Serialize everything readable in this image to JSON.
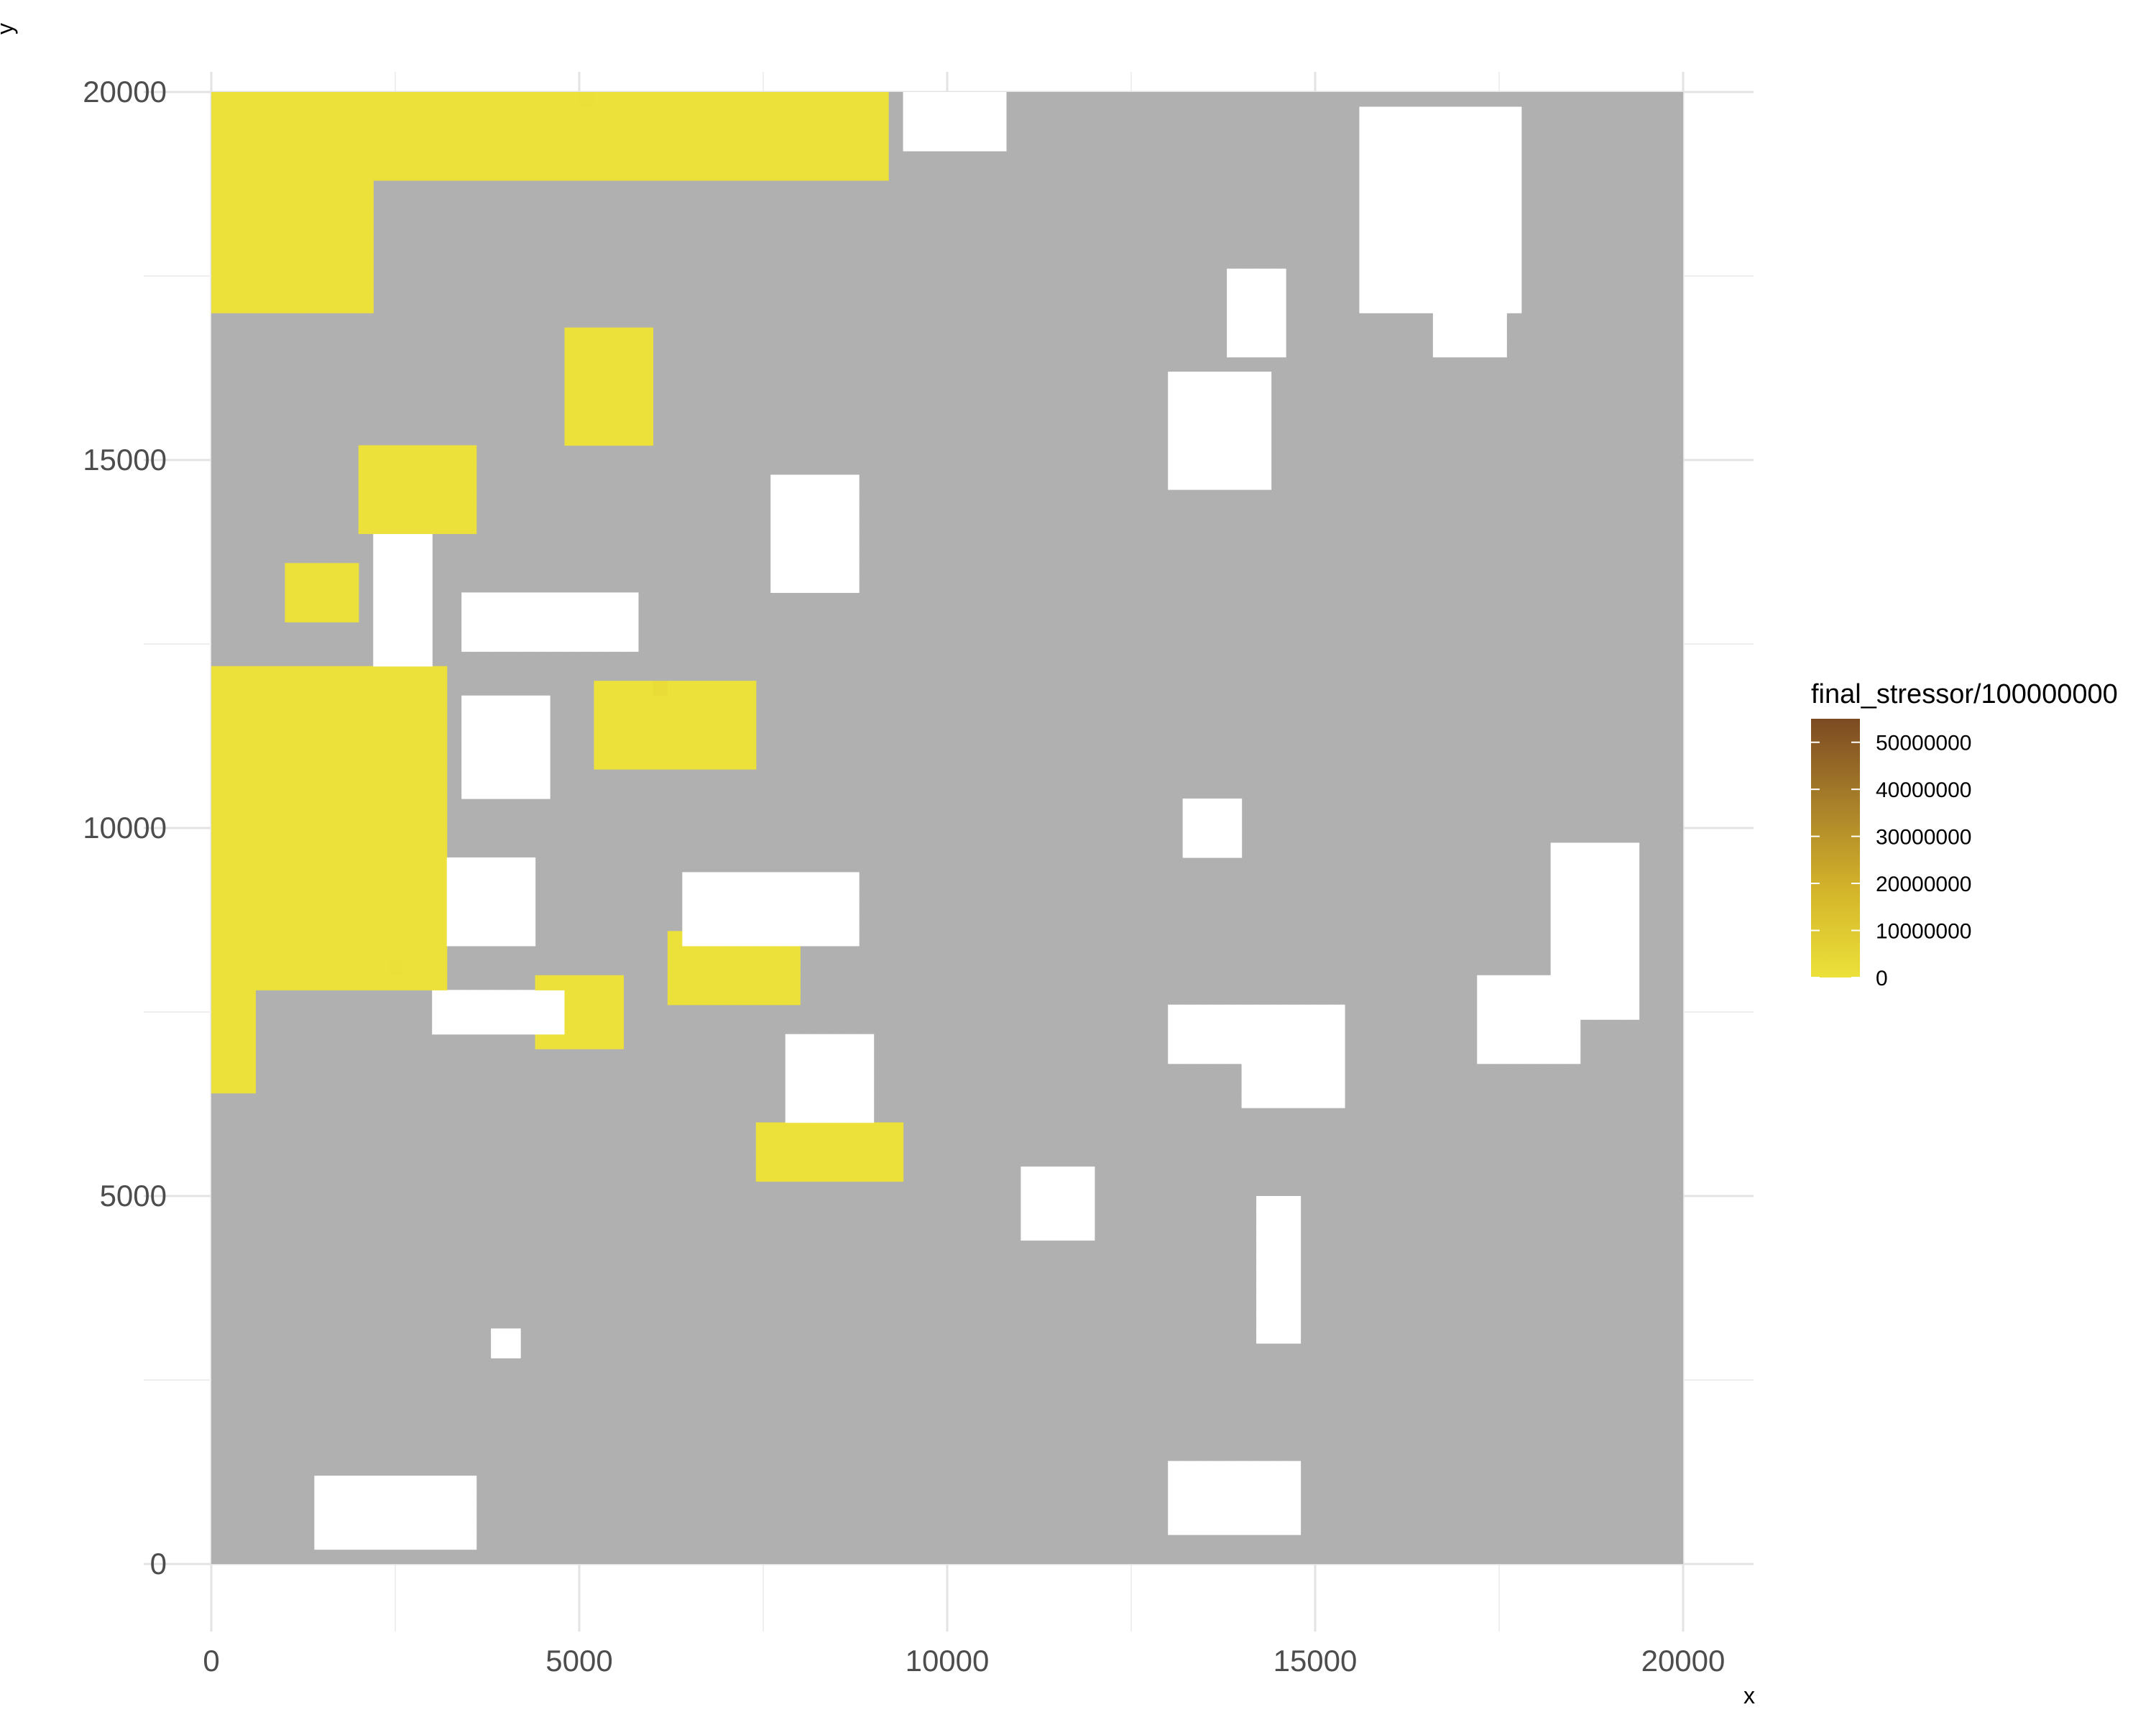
{
  "chart_data": {
    "type": "heatmap",
    "title": "",
    "xlabel": "x",
    "ylabel": "y",
    "xlim": [
      0,
      20000
    ],
    "ylim": [
      0,
      20000
    ],
    "x_ticks": [
      "0",
      "5000",
      "10000",
      "15000",
      "20000"
    ],
    "y_ticks": [
      "0",
      "5000",
      "10000",
      "15000",
      "20000"
    ],
    "grid": true,
    "cell_size": 200,
    "background_color": "#b0b0b0",
    "empty_color": "#ffffff",
    "legend": {
      "title": "final_stressor/100000000",
      "position": "right",
      "labels": [
        "50000000",
        "40000000",
        "30000000",
        "20000000",
        "10000000",
        "0"
      ],
      "values": [
        50000000,
        40000000,
        30000000,
        20000000,
        10000000,
        0
      ],
      "min": 0,
      "max": 55000000,
      "colors": [
        "#ece13a",
        "#d4b52a",
        "#a9812a",
        "#7c4a22"
      ]
    },
    "value_regions": [
      {
        "x": [
          0,
          9200
        ],
        "y": [
          18800,
          20000
        ],
        "value": 0
      },
      {
        "x": [
          0,
          2200
        ],
        "y": [
          17000,
          18800
        ],
        "value": 0
      },
      {
        "x": [
          5000,
          6400
        ],
        "y": [
          19000,
          20000
        ],
        "value": 0
      },
      {
        "x": [
          4800,
          6000
        ],
        "y": [
          15200,
          16800
        ],
        "value": 0
      },
      {
        "x": [
          2000,
          3600
        ],
        "y": [
          14000,
          15200
        ],
        "value": 0
      },
      {
        "x": [
          1000,
          2000
        ],
        "y": [
          12800,
          13600
        ],
        "value": 0
      },
      {
        "x": [
          0,
          3200
        ],
        "y": [
          7800,
          12200
        ],
        "value": 0
      },
      {
        "x": [
          0,
          600
        ],
        "y": [
          6400,
          7800
        ],
        "value": 0
      },
      {
        "x": [
          5200,
          7400
        ],
        "y": [
          10800,
          12000
        ],
        "value": 0
      },
      {
        "x": [
          6200,
          8000
        ],
        "y": [
          7600,
          8600
        ],
        "value": 0
      },
      {
        "x": [
          4400,
          5600
        ],
        "y": [
          7000,
          8000
        ],
        "value": 0
      },
      {
        "x": [
          7400,
          9400
        ],
        "y": [
          5200,
          6000
        ],
        "value": 0
      }
    ],
    "nonzero_cells": [
      {
        "x": 5100,
        "y": 19900,
        "value": 400000
      },
      {
        "x": 6100,
        "y": 11900,
        "value": 2000000
      },
      {
        "x": 2500,
        "y": 8000,
        "value": 500000
      }
    ],
    "empty_regions": [
      {
        "x": [
          9400,
          10800
        ],
        "y": [
          19200,
          20000
        ]
      },
      {
        "x": [
          15600,
          17800
        ],
        "y": [
          17000,
          19800
        ]
      },
      {
        "x": [
          13800,
          14600
        ],
        "y": [
          16400,
          17600
        ]
      },
      {
        "x": [
          16600,
          17600
        ],
        "y": [
          16400,
          18000
        ]
      },
      {
        "x": [
          13000,
          14400
        ],
        "y": [
          14600,
          16200
        ]
      },
      {
        "x": [
          7600,
          8800
        ],
        "y": [
          13200,
          14800
        ]
      },
      {
        "x": [
          3400,
          5800
        ],
        "y": [
          12400,
          13200
        ]
      },
      {
        "x": [
          2200,
          3000
        ],
        "y": [
          12200,
          14000
        ]
      },
      {
        "x": [
          3400,
          4600
        ],
        "y": [
          10400,
          11800
        ]
      },
      {
        "x": [
          3200,
          4400
        ],
        "y": [
          8400,
          9600
        ]
      },
      {
        "x": [
          6400,
          8800
        ],
        "y": [
          8400,
          9400
        ]
      },
      {
        "x": [
          3000,
          4800
        ],
        "y": [
          7200,
          7800
        ]
      },
      {
        "x": [
          7800,
          9000
        ],
        "y": [
          6000,
          7200
        ]
      },
      {
        "x": [
          13000,
          14800
        ],
        "y": [
          6800,
          7600
        ]
      },
      {
        "x": [
          14000,
          15400
        ],
        "y": [
          6200,
          7600
        ]
      },
      {
        "x": [
          17200,
          18600
        ],
        "y": [
          6800,
          8000
        ]
      },
      {
        "x": [
          18200,
          19400
        ],
        "y": [
          7400,
          9800
        ]
      },
      {
        "x": [
          13200,
          14000
        ],
        "y": [
          9600,
          10400
        ]
      },
      {
        "x": [
          11000,
          12000
        ],
        "y": [
          4400,
          5400
        ]
      },
      {
        "x": [
          14200,
          14800
        ],
        "y": [
          3000,
          5000
        ]
      },
      {
        "x": [
          3800,
          4200
        ],
        "y": [
          2800,
          3200
        ]
      },
      {
        "x": [
          1400,
          3600
        ],
        "y": [
          200,
          1200
        ]
      },
      {
        "x": [
          13000,
          14800
        ],
        "y": [
          400,
          1400
        ]
      }
    ]
  }
}
